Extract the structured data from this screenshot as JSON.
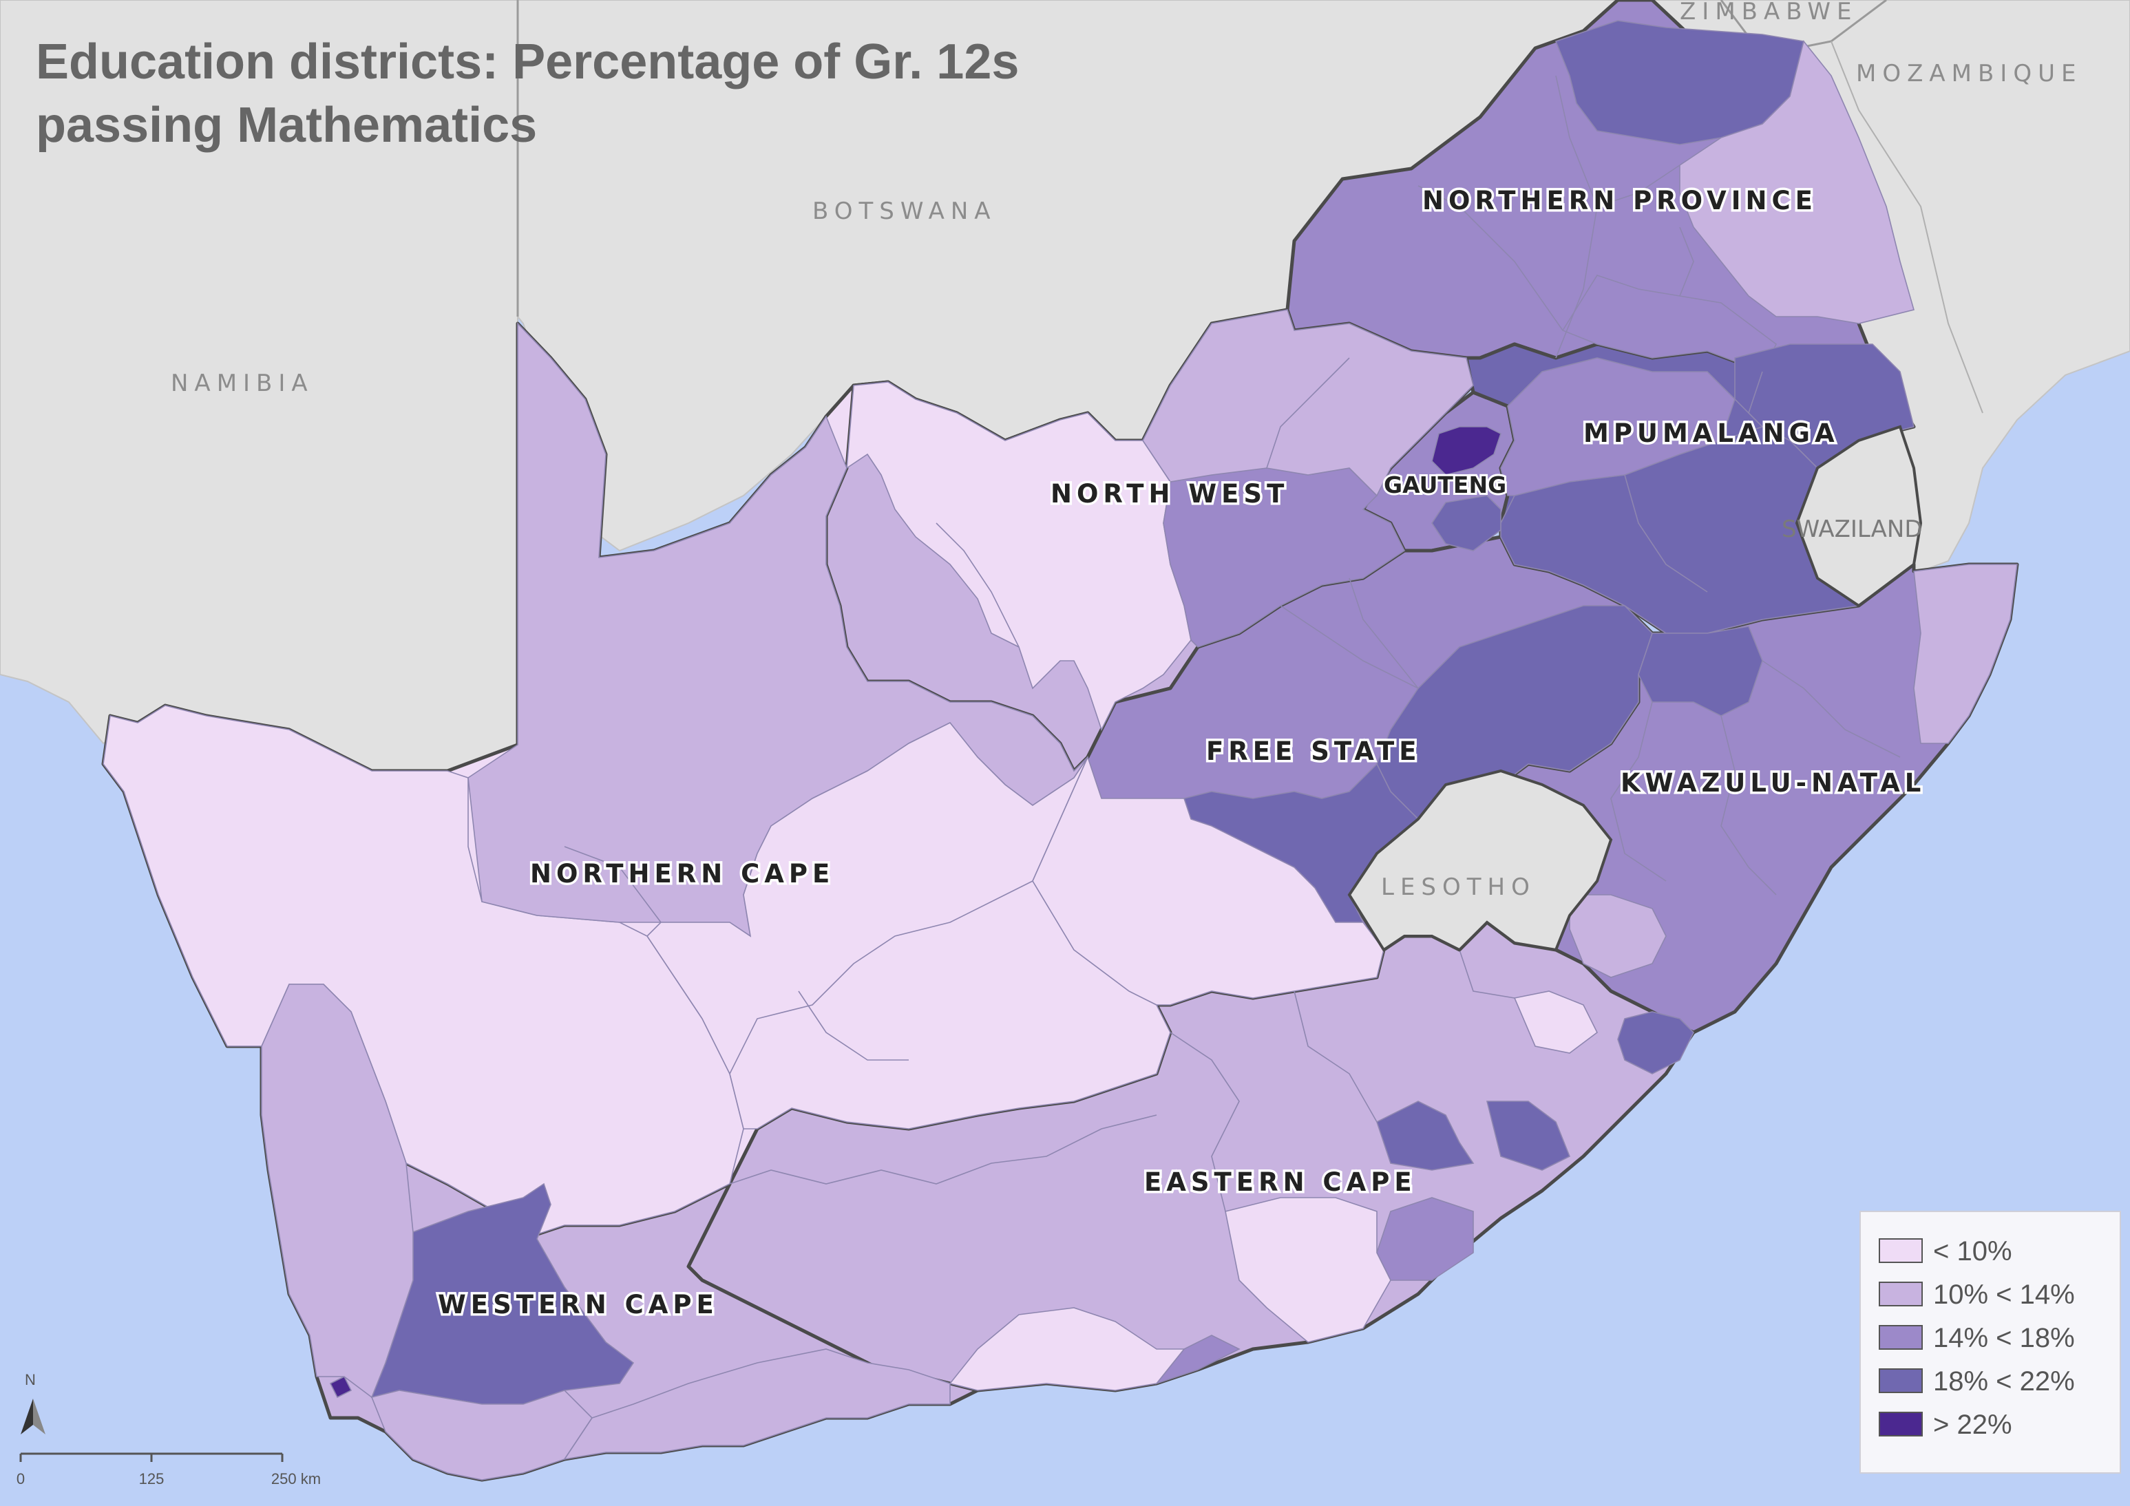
{
  "title": {
    "line1": "Education districts: Percentage of Gr. 12s",
    "line2": "passing Mathematics"
  },
  "countries": {
    "zimbabwe": "ZIMBABWE",
    "mozambique": "MOZAMBIQUE",
    "botswana": "BOTSWANA",
    "namibia": "NAMIBIA",
    "swaziland": "SWAZILAND",
    "lesotho": "LESOTHO"
  },
  "provinces": {
    "northern_province": "NORTHERN PROVINCE",
    "mpumalanga": "MPUMALANGA",
    "gauteng": "GAUTENG",
    "north_west": "NORTH WEST",
    "free_state": "FREE STATE",
    "kwazulu_natal": "KWAZULU-NATAL",
    "northern_cape": "NORTHERN CAPE",
    "eastern_cape": "EASTERN CAPE",
    "western_cape": "WESTERN CAPE"
  },
  "legend": {
    "items": [
      {
        "label": "< 10%",
        "color": "#efdcf6"
      },
      {
        "label": "10% < 14%",
        "color": "#c8b3e0"
      },
      {
        "label": "14% < 18%",
        "color": "#9c89c9"
      },
      {
        "label": "18% < 22%",
        "color": "#7068b0"
      },
      {
        "label": "> 22%",
        "color": "#4b2890"
      }
    ]
  },
  "colors": {
    "ocean": "#bcd0f7",
    "land_neighbors": "#e1e1e1",
    "class1": "#efdcf6",
    "class2": "#c8b3e0",
    "class3": "#9c89c9",
    "class4": "#7068b0",
    "class5": "#4b2890"
  },
  "north_arrow": {
    "label": "N"
  },
  "scale_bar": {
    "ticks": [
      "0",
      "125",
      "250 km"
    ]
  }
}
